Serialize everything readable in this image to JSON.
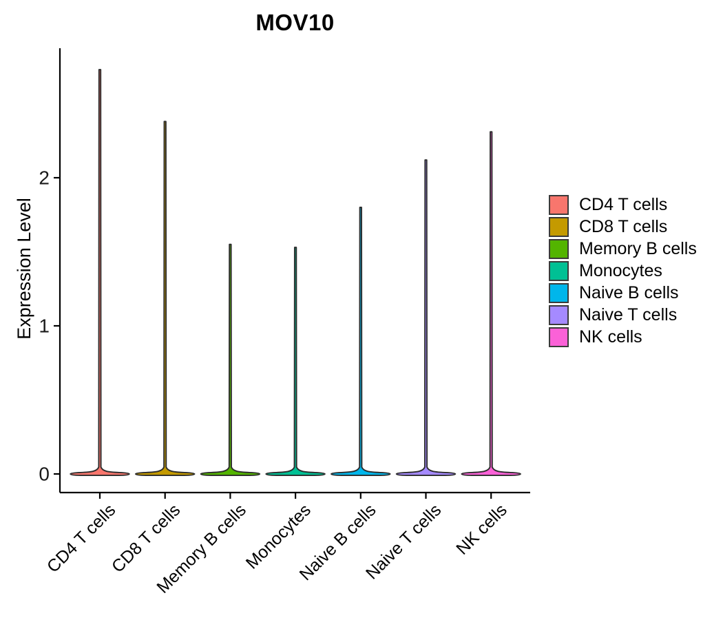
{
  "figure": {
    "background_color": "#FFFFFF"
  },
  "chart_data": {
    "type": "violin",
    "title": "MOV10",
    "ylabel": "Expression Level",
    "xlabel": "",
    "legend_position": "right",
    "grid": false,
    "yticks": [
      0,
      1,
      2
    ],
    "ylim": [
      -0.1,
      2.85
    ],
    "axis_color": "#000000",
    "violin_outline_color": "#2d2d2d",
    "legend_swatch_border_color": "#3a3a3a",
    "categories": [
      "CD4 T cells",
      "CD8 T cells",
      "Memory B cells",
      "Monocytes",
      "Naive B cells",
      "Naive T cells",
      "NK cells"
    ],
    "series": [
      {
        "name": "CD4 T cells",
        "color": "#F8766D",
        "bulk_value": 0,
        "peak_expression": 2.73
      },
      {
        "name": "CD8 T cells",
        "color": "#C49A00",
        "bulk_value": 0,
        "peak_expression": 2.38
      },
      {
        "name": "Memory B cells",
        "color": "#53B400",
        "bulk_value": 0,
        "peak_expression": 1.55
      },
      {
        "name": "Monocytes",
        "color": "#00C094",
        "bulk_value": 0,
        "peak_expression": 1.53
      },
      {
        "name": "Naive B cells",
        "color": "#00B6EB",
        "bulk_value": 0,
        "peak_expression": 1.8
      },
      {
        "name": "Naive T cells",
        "color": "#A58AFF",
        "bulk_value": 0,
        "peak_expression": 2.12
      },
      {
        "name": "NK cells",
        "color": "#FB61D7",
        "bulk_value": 0,
        "peak_expression": 2.31
      }
    ],
    "distribution_note": "Each violin is a flat wide mass at expression 0 with a thin spike rising to the peak expression value"
  }
}
